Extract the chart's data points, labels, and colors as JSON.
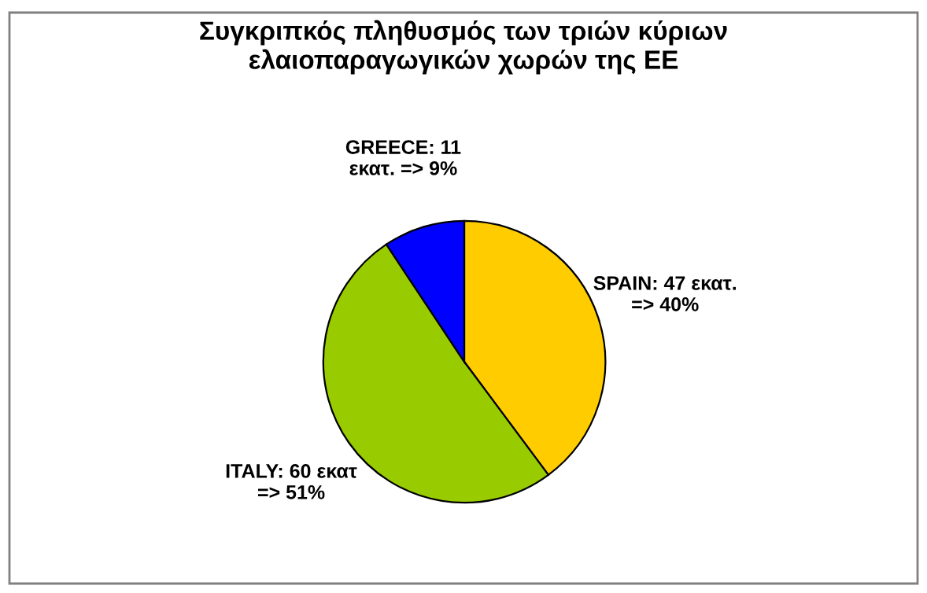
{
  "chart_data": {
    "type": "pie",
    "title": "Συγκριπκός πληθυσμός των τριών κύριων\nελαιοπαραγωγικών χωρών της ΕΕ",
    "categories": [
      "SPAIN: 47 εκατ.\n=> 40%",
      "ITALY: 60 εκατ\n=> 51%",
      "GREECE: 11\nεκατ. => 9%"
    ],
    "values": [
      47,
      60,
      11
    ],
    "colors": [
      "#ffcc00",
      "#99cc00",
      "#0000ff"
    ],
    "legend": false
  }
}
